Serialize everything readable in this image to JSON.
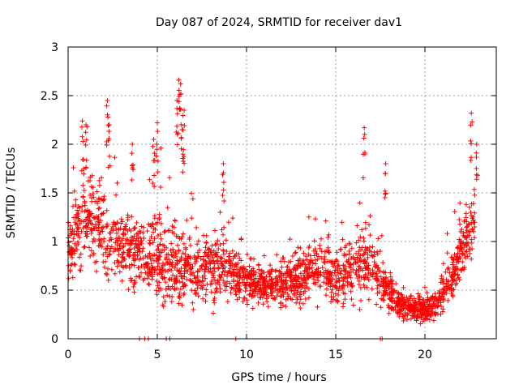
{
  "chart_data": {
    "type": "scatter",
    "title": "Day 087 of 2024, SRMTID for receiver dav1",
    "xlabel": "GPS time / hours",
    "ylabel": "SRMTID / TECUs",
    "xlim": [
      0,
      24
    ],
    "ylim": [
      0,
      3
    ],
    "xticks": [
      0,
      5,
      10,
      15,
      20
    ],
    "xtick_labels": [
      "0",
      "5",
      "10",
      "15",
      "20"
    ],
    "yticks": [
      0,
      0.5,
      1,
      1.5,
      2,
      2.5,
      3
    ],
    "ytick_labels": [
      "0",
      "0.5",
      "1",
      "1.5",
      "2",
      "2.5",
      "3"
    ],
    "grid": true,
    "marker": "plus",
    "series_color": "#ff0000",
    "series": [
      {
        "name": "SRMTID",
        "envelope": {
          "x": [
            0,
            0.5,
            1,
            1.5,
            2,
            2.5,
            3,
            3.5,
            4,
            4.5,
            5,
            5.5,
            6,
            6.5,
            7,
            7.5,
            8,
            8.5,
            9,
            9.5,
            10,
            10.5,
            11,
            11.5,
            12,
            12.5,
            13,
            13.5,
            14,
            14.5,
            15,
            15.5,
            16,
            16.5,
            17,
            17.5,
            18,
            18.5,
            19,
            19.5,
            20,
            20.5,
            21,
            21.5,
            22,
            22.5,
            23
          ],
          "typical": [
            0.9,
            1.1,
            1.3,
            1.2,
            1.1,
            1.0,
            0.95,
            0.9,
            0.9,
            0.85,
            0.85,
            0.8,
            0.75,
            0.75,
            0.7,
            0.7,
            0.72,
            0.75,
            0.7,
            0.65,
            0.6,
            0.55,
            0.55,
            0.55,
            0.55,
            0.58,
            0.65,
            0.7,
            0.75,
            0.7,
            0.65,
            0.65,
            0.7,
            0.8,
            0.75,
            0.6,
            0.5,
            0.35,
            0.32,
            0.3,
            0.3,
            0.35,
            0.45,
            0.6,
            0.9,
            1.1,
            1.3
          ],
          "spread": [
            0.3,
            0.45,
            0.5,
            0.45,
            0.45,
            0.4,
            0.4,
            0.4,
            0.4,
            0.4,
            0.45,
            0.45,
            0.45,
            0.4,
            0.35,
            0.35,
            0.35,
            0.35,
            0.3,
            0.3,
            0.25,
            0.2,
            0.2,
            0.2,
            0.22,
            0.25,
            0.3,
            0.3,
            0.3,
            0.3,
            0.3,
            0.3,
            0.35,
            0.4,
            0.35,
            0.3,
            0.2,
            0.15,
            0.12,
            0.12,
            0.12,
            0.15,
            0.2,
            0.25,
            0.3,
            0.35,
            0.35
          ]
        },
        "peaks": [
          {
            "x": 0.8,
            "y": 2.24
          },
          {
            "x": 1.0,
            "y": 2.2
          },
          {
            "x": 2.2,
            "y": 2.45
          },
          {
            "x": 2.3,
            "y": 2.2
          },
          {
            "x": 3.6,
            "y": 2.0
          },
          {
            "x": 4.8,
            "y": 2.05
          },
          {
            "x": 5.0,
            "y": 2.22
          },
          {
            "x": 6.2,
            "y": 2.66
          },
          {
            "x": 6.3,
            "y": 2.62
          },
          {
            "x": 6.5,
            "y": 2.35
          },
          {
            "x": 6.4,
            "y": 2.15
          },
          {
            "x": 6.1,
            "y": 2.45
          },
          {
            "x": 8.7,
            "y": 1.8
          },
          {
            "x": 16.6,
            "y": 2.17
          },
          {
            "x": 17.8,
            "y": 1.8
          },
          {
            "x": 22.6,
            "y": 2.32
          },
          {
            "x": 22.9,
            "y": 2.0
          }
        ],
        "zero_points_x": [
          4.0,
          4.3,
          4.5,
          5.5,
          5.7,
          9.4,
          17.5,
          17.6
        ]
      }
    ]
  }
}
